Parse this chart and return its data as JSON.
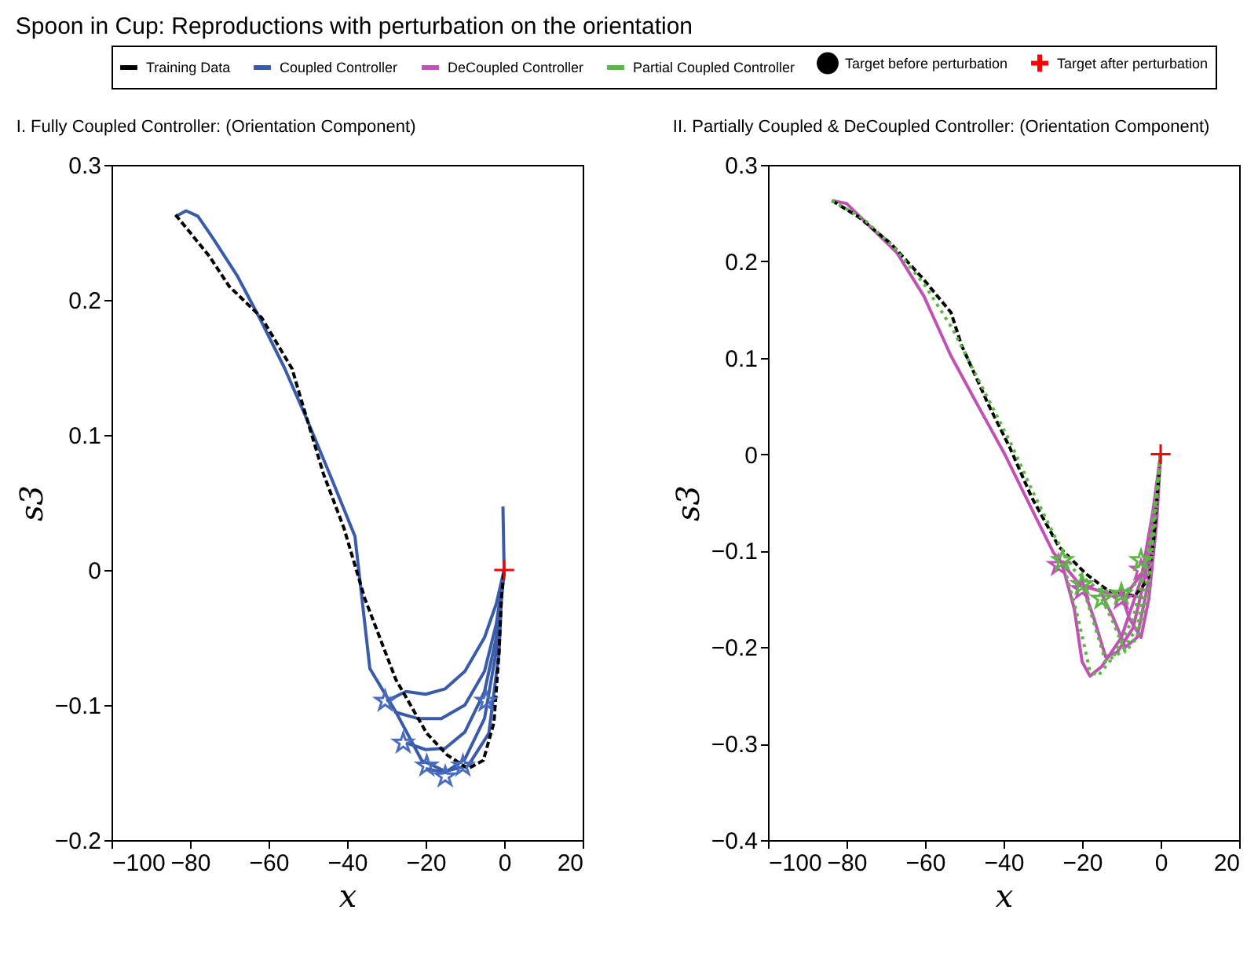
{
  "chart_data": [
    {
      "type": "line",
      "title": "Spoon in Cup: Reproductions with perturbation on the orientation",
      "subtitle": "I. Fully Coupled Controller: (Orientation Component)",
      "xlabel": "x",
      "ylabel": "s3",
      "xlim": [
        -100,
        20
      ],
      "ylim": [
        -0.2,
        0.3
      ],
      "xticks": [
        -100,
        -80,
        -60,
        -40,
        -20,
        0,
        20
      ],
      "yticks": [
        -0.2,
        -0.1,
        0,
        0.1,
        0.2,
        0.3
      ],
      "grid": false,
      "legend": "top",
      "series": [
        {
          "name": "Training Data",
          "color": "#000000",
          "line_style": "dashed",
          "x": [
            -83.7,
            -80,
            -75,
            -70,
            -61.8,
            -54,
            -52.6,
            -46,
            -40.8,
            -35.5,
            -27.6,
            -19.7,
            -14.5,
            -9.2,
            -5.3,
            -2.6,
            -1.3,
            -0.7,
            0
          ],
          "values": [
            0.263,
            0.25,
            0.232,
            0.21,
            0.187,
            0.149,
            0.135,
            0.071,
            0.031,
            -0.021,
            -0.081,
            -0.121,
            -0.137,
            -0.147,
            -0.141,
            -0.113,
            -0.061,
            -0.021,
            0
          ]
        },
        {
          "name": "Coupled Controller",
          "color": "#3a5ba9",
          "line_style": "solid",
          "x": [
            -83.5,
            -81,
            -78,
            -74,
            -68,
            -62,
            -56,
            -50,
            -44,
            -38,
            -34.2,
            -27.6,
            -21,
            -15,
            -9.2,
            -3.9,
            -1.3,
            -0.7,
            0,
            -0.3
          ],
          "values": [
            0.262,
            0.266,
            0.262,
            0.245,
            0.218,
            0.185,
            0.15,
            0.11,
            0.068,
            0.025,
            -0.073,
            -0.105,
            -0.141,
            -0.149,
            -0.145,
            -0.121,
            -0.061,
            -0.021,
            0,
            0.047
          ]
        },
        {
          "color": "#3a5ba9",
          "line_style": "solid",
          "x": [
            -30,
            -25,
            -20,
            -15,
            -10,
            -5,
            -2,
            0
          ],
          "values": [
            -0.097,
            -0.09,
            -0.092,
            -0.088,
            -0.075,
            -0.05,
            -0.025,
            0
          ]
        },
        {
          "color": "#3a5ba9",
          "line_style": "solid",
          "x": [
            -28,
            -22,
            -16,
            -10,
            -5,
            -2,
            0
          ],
          "values": [
            -0.105,
            -0.11,
            -0.11,
            -0.1,
            -0.075,
            -0.04,
            0
          ]
        },
        {
          "color": "#3a5ba9",
          "line_style": "solid",
          "x": [
            -25,
            -20,
            -15,
            -10,
            -5,
            -2,
            0
          ],
          "values": [
            -0.128,
            -0.133,
            -0.132,
            -0.12,
            -0.09,
            -0.05,
            0
          ]
        },
        {
          "color": "#3a5ba9",
          "line_style": "solid",
          "x": [
            -20,
            -15,
            -10,
            -5,
            -2,
            0
          ],
          "values": [
            -0.147,
            -0.15,
            -0.14,
            -0.11,
            -0.06,
            0
          ]
        },
        {
          "type": "scatter",
          "marker": "star",
          "color": "#4a6cc0",
          "x": [
            -30.3,
            -25.7,
            -19.7,
            -15,
            -10.5,
            -4.6
          ],
          "values": [
            -0.097,
            -0.128,
            -0.145,
            -0.153,
            -0.145,
            -0.097
          ]
        },
        {
          "name": "Target after perturbation",
          "type": "scatter",
          "marker": "cross",
          "color": "#ff0000",
          "x": [
            0
          ],
          "values": [
            0
          ]
        }
      ]
    },
    {
      "type": "line",
      "title": "II. Partially Coupled & DeCoupled Controller: (Orientation Component)",
      "xlabel": "x",
      "ylabel": "s3",
      "xlim": [
        -100,
        20
      ],
      "ylim": [
        -0.4,
        0.3
      ],
      "xticks": [
        -100,
        -80,
        -60,
        -40,
        -20,
        0,
        20
      ],
      "yticks": [
        -0.4,
        -0.3,
        -0.2,
        -0.1,
        0,
        0.1,
        0.2,
        0.3
      ],
      "grid": false,
      "legend": "top",
      "series": [
        {
          "name": "Training Data",
          "color": "#000000",
          "line_style": "dashed",
          "x": [
            -83.7,
            -76.9,
            -68.6,
            -60.3,
            -53.4,
            -50.7,
            -43.8,
            -38.3,
            -32.8,
            -25.9,
            -19,
            -13.5,
            -6.6,
            -3.2,
            -1.8,
            -0.8,
            0
          ],
          "values": [
            0.263,
            0.246,
            0.218,
            0.181,
            0.147,
            0.113,
            0.051,
            0.006,
            -0.045,
            -0.096,
            -0.124,
            -0.141,
            -0.147,
            -0.13,
            -0.09,
            -0.04,
            0
          ]
        },
        {
          "name": "DeCoupled Controller",
          "color": "#c052b5",
          "line_style": "solid",
          "x": [
            -83.7,
            -80,
            -67.2,
            -60.3,
            -53.4,
            -46.6,
            -39.7,
            -32.8,
            -27.3,
            -20.4,
            -13.5,
            -8,
            -3.9,
            -1.8,
            0
          ],
          "values": [
            0.263,
            0.26,
            0.209,
            0.164,
            0.102,
            0.051,
            0,
            -0.057,
            -0.102,
            -0.136,
            -0.144,
            -0.141,
            -0.119,
            -0.073,
            0
          ]
        },
        {
          "name": "Partial Coupled Controller",
          "color": "#5cb844",
          "line_style": "dotted",
          "x": [
            -83.7,
            -76,
            -68,
            -60,
            -53,
            -48,
            -43,
            -38,
            -33,
            -27,
            -22,
            -16,
            -10,
            -5,
            -2,
            0
          ],
          "values": [
            0.263,
            0.245,
            0.215,
            0.175,
            0.13,
            0.09,
            0.05,
            0.01,
            -0.035,
            -0.085,
            -0.12,
            -0.14,
            -0.145,
            -0.13,
            -0.08,
            0
          ]
        },
        {
          "name": "Target before perturbation",
          "type": "scatter",
          "marker": "circle",
          "color": "#000000"
        },
        {
          "color": "#c052b5",
          "line_style": "solid",
          "x": [
            -25,
            -22,
            -20,
            -18,
            -15,
            -10,
            -5,
            -2,
            0
          ],
          "values": [
            -0.115,
            -0.16,
            -0.215,
            -0.23,
            -0.22,
            -0.19,
            -0.13,
            -0.06,
            0
          ]
        },
        {
          "color": "#c052b5",
          "line_style": "solid",
          "x": [
            -20,
            -17,
            -14,
            -11,
            -7,
            -3,
            0
          ],
          "values": [
            -0.135,
            -0.17,
            -0.21,
            -0.205,
            -0.18,
            -0.11,
            0
          ]
        },
        {
          "color": "#c052b5",
          "line_style": "solid",
          "x": [
            -15,
            -12,
            -9,
            -6,
            -3,
            0
          ],
          "values": [
            -0.145,
            -0.17,
            -0.2,
            -0.19,
            -0.13,
            0
          ]
        },
        {
          "color": "#c052b5",
          "line_style": "solid",
          "x": [
            -10,
            -8,
            -5,
            -3,
            -1,
            0
          ],
          "values": [
            -0.145,
            -0.17,
            -0.19,
            -0.15,
            -0.07,
            0
          ]
        },
        {
          "color": "#5cb844",
          "line_style": "dotted",
          "x": [
            -25,
            -21,
            -18,
            -16,
            -12,
            -7,
            -3,
            0
          ],
          "values": [
            -0.11,
            -0.17,
            -0.225,
            -0.23,
            -0.21,
            -0.17,
            -0.1,
            0
          ]
        },
        {
          "color": "#5cb844",
          "line_style": "dotted",
          "x": [
            -20,
            -17,
            -14,
            -10,
            -6,
            -3,
            0
          ],
          "values": [
            -0.135,
            -0.175,
            -0.215,
            -0.205,
            -0.18,
            -0.12,
            0
          ]
        },
        {
          "color": "#5cb844",
          "line_style": "dotted",
          "x": [
            -15,
            -12,
            -9,
            -6,
            -3,
            0
          ],
          "values": [
            -0.15,
            -0.175,
            -0.205,
            -0.19,
            -0.14,
            0
          ]
        },
        {
          "type": "scatter",
          "marker": "star",
          "color": "#c052b5",
          "x": [
            -26,
            -20,
            -10,
            -5
          ],
          "values": [
            -0.115,
            -0.14,
            -0.15,
            -0.12
          ]
        },
        {
          "type": "scatter",
          "marker": "star",
          "color": "#5cb844",
          "x": [
            -25,
            -20,
            -15,
            -10,
            -5
          ],
          "values": [
            -0.11,
            -0.135,
            -0.15,
            -0.145,
            -0.11
          ]
        },
        {
          "name": "Target after perturbation",
          "type": "scatter",
          "marker": "cross",
          "color": "#ff0000",
          "x": [
            0
          ],
          "values": [
            0
          ]
        }
      ]
    }
  ]
}
